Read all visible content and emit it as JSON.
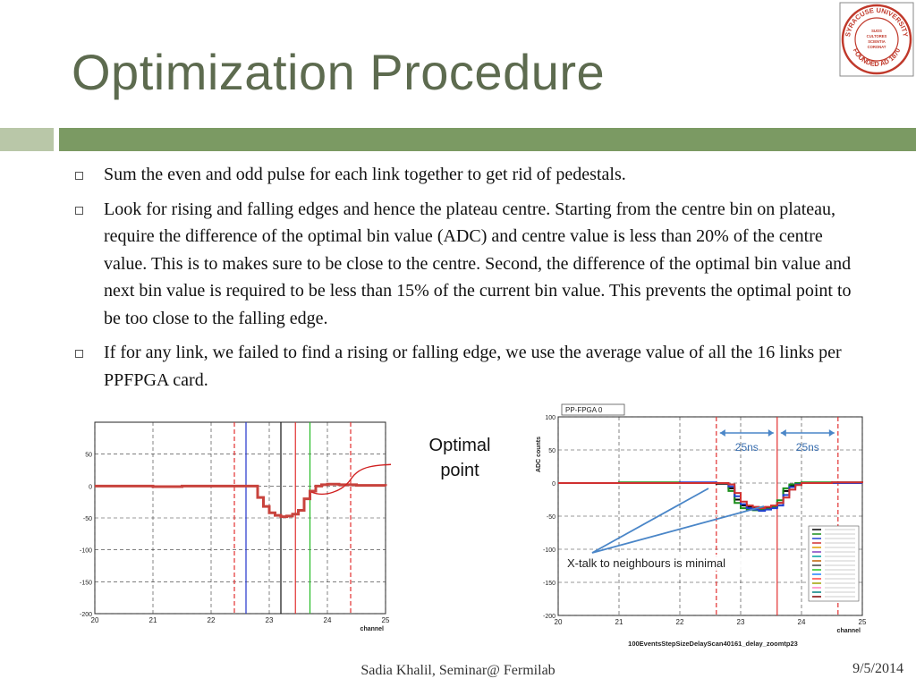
{
  "title": "Optimization Procedure",
  "logo": {
    "ring_top": "SYRACUSE UNIVERSITY",
    "ring_bottom": "FOUNDED AD 1870",
    "center_lines": [
      "SUOS",
      "CULTORES",
      "SCIENTIA",
      "CORONAT"
    ],
    "color": "#c0392b"
  },
  "bullets": [
    "Sum the even and odd pulse for each link together to get rid of pedestals.",
    "Look for rising and falling edges and hence the plateau centre.  Starting from the centre bin on plateau, require the difference of  the optimal bin value (ADC) and centre value is less than 20% of the centre value. This is to makes sure to be close to the centre. Second, the difference of the optimal bin value and next bin value is required to be less than 15% of the current bin value. This prevents the optimal point to be too close to the  falling edge.",
    "If for any link, we failed to find a rising or falling edge, we use the average value of all the 16 links per PPFPGA card."
  ],
  "callout": {
    "line1": "Optimal",
    "line2": "point"
  },
  "chart_data": [
    {
      "type": "line",
      "xlabel": "channel",
      "xlim": [
        20,
        25
      ],
      "ylim": [
        -200,
        100
      ],
      "xticks": [
        20,
        21,
        22,
        23,
        24,
        25
      ],
      "yticks": [
        -200,
        -150,
        -100,
        -50,
        0,
        50
      ],
      "x": [
        20.0,
        20.5,
        21.0,
        21.5,
        22.0,
        22.5,
        22.7,
        22.8,
        22.9,
        23.0,
        23.1,
        23.2,
        23.3,
        23.4,
        23.5,
        23.6,
        23.7,
        23.8,
        23.9,
        24.0,
        24.2,
        24.5,
        25.0
      ],
      "series": [
        {
          "color": "#c8433d",
          "values": [
            0,
            0,
            -1,
            0,
            0,
            0,
            0,
            -18,
            -32,
            -42,
            -46,
            -48,
            -47,
            -44,
            -38,
            -20,
            -8,
            0,
            2,
            3,
            2,
            1,
            0
          ]
        }
      ],
      "vlines": [
        {
          "x": 22.4,
          "color": "#e23030",
          "dash": true
        },
        {
          "x": 22.6,
          "color": "#2233cc",
          "dash": false
        },
        {
          "x": 23.2,
          "color": "#111111",
          "dash": false
        },
        {
          "x": 23.45,
          "color": "#e23030",
          "dash": false
        },
        {
          "x": 23.7,
          "color": "#22bb22",
          "dash": false
        },
        {
          "x": 24.4,
          "color": "#e23030",
          "dash": true
        }
      ]
    },
    {
      "type": "line",
      "title": "PP-FPGA 0",
      "xlabel": "channel",
      "ylabel": "ADC counts",
      "xlim": [
        20,
        25
      ],
      "ylim": [
        -200,
        100
      ],
      "xticks": [
        20,
        21,
        22,
        23,
        24,
        25
      ],
      "yticks": [
        -200,
        -150,
        -100,
        -50,
        0,
        50,
        100
      ],
      "x": [
        20.0,
        21.0,
        22.0,
        22.6,
        22.8,
        22.9,
        23.0,
        23.1,
        23.2,
        23.3,
        23.4,
        23.5,
        23.6,
        23.7,
        23.8,
        23.9,
        24.0,
        24.5,
        25.0
      ],
      "series": [
        {
          "color": "#000000",
          "values": [
            0,
            0,
            0,
            -1,
            -8,
            -25,
            -34,
            -36,
            -37,
            -38,
            -37,
            -36,
            -30,
            -12,
            -4,
            -1,
            0,
            1,
            0
          ]
        },
        {
          "color": "#1a8f1a",
          "values": [
            0,
            1,
            0,
            0,
            -12,
            -30,
            -38,
            -40,
            -41,
            -40,
            -39,
            -36,
            -26,
            -8,
            -2,
            0,
            1,
            0,
            0
          ]
        },
        {
          "color": "#2040d0",
          "values": [
            0,
            0,
            1,
            0,
            -5,
            -20,
            -32,
            -38,
            -40,
            -42,
            -40,
            -38,
            -34,
            -18,
            -6,
            -2,
            0,
            0,
            0
          ]
        },
        {
          "color": "#d03030",
          "values": [
            0,
            0,
            0,
            0,
            -2,
            -15,
            -28,
            -34,
            -36,
            -38,
            -36,
            -34,
            -30,
            -22,
            -10,
            -3,
            0,
            1,
            0
          ]
        }
      ],
      "annotations": {
        "span": "25ns",
        "xtalk": "X-talk to neighbours is minimal",
        "footer": "100EventsStepSizeDelayScan40161_delay_zoomtp23"
      },
      "vlines": [
        {
          "x": 22.6,
          "color": "#e23030",
          "dash": true
        },
        {
          "x": 23.6,
          "color": "#e23030",
          "dash": false
        },
        {
          "x": 24.6,
          "color": "#e23030",
          "dash": true
        }
      ]
    }
  ],
  "footer": {
    "center": "Sadia Khalil, Seminar@ Fermilab",
    "date": "9/5/2014"
  }
}
